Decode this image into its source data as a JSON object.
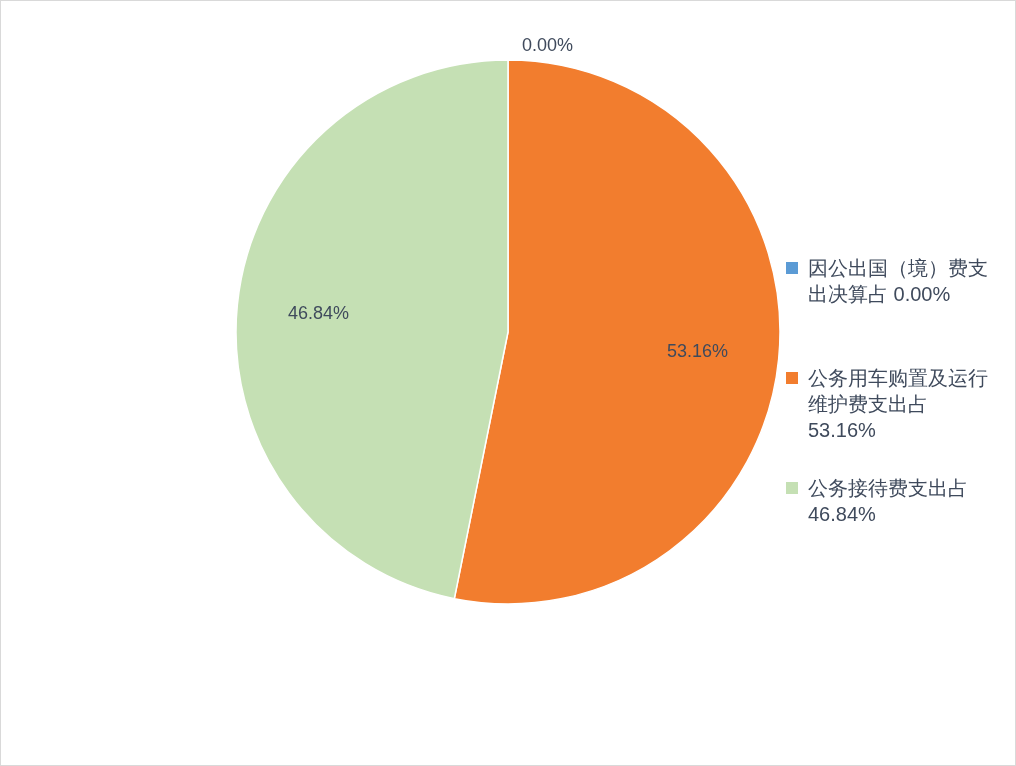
{
  "chart_data": {
    "type": "pie",
    "categories": [
      "因公出国（境）费支出决算占 0.00%",
      "公务用车购置及运行维护费支出占 53.16%",
      "公务接待费支出占 46.84%"
    ],
    "values": [
      0,
      53.16,
      46.84
    ],
    "colors": [
      "#5b9bd5",
      "#f27d2e",
      "#c5e0b4"
    ],
    "value_labels": [
      "0.00%",
      "53.16%",
      "46.84%"
    ],
    "legend": "right"
  }
}
